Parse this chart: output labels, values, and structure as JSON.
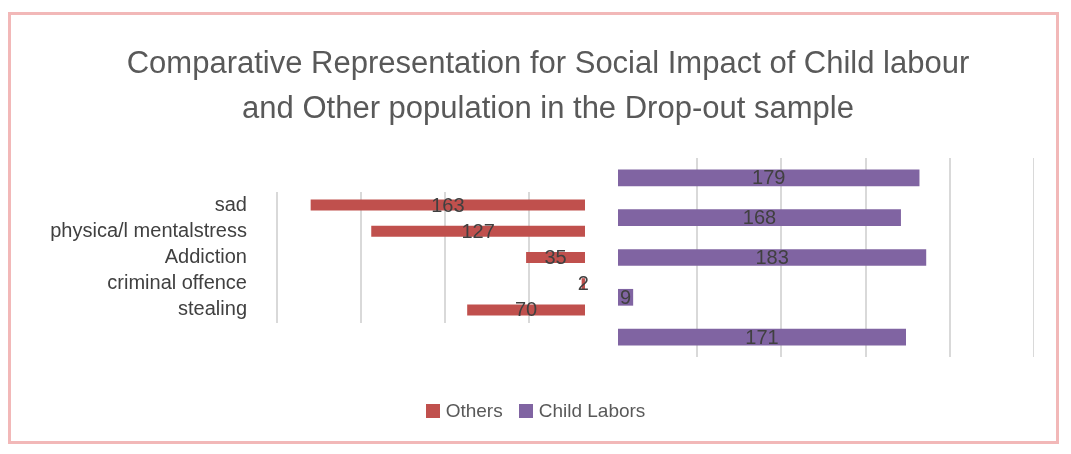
{
  "chart_data": [
    {
      "type": "bar",
      "orientation": "horizontal",
      "title": "Comparative Representation for Social Impact of Child labour and Other population in the Drop-out sample",
      "categories": [
        "sad",
        "physica/l mentalstress",
        "Addiction",
        "criminal offence",
        "stealing"
      ],
      "series": [
        {
          "name": "Others",
          "color": "#c0504d",
          "values": [
            163,
            127,
            35,
            2,
            70
          ]
        }
      ],
      "xlim": [
        183,
        0
      ],
      "xticks": [
        {
          "value": 33,
          "label": null
        },
        {
          "value": 83,
          "label": null
        },
        {
          "value": 133,
          "label": null
        },
        {
          "value": 183,
          "label": null
        }
      ],
      "grid": "x",
      "tick_labels": "y",
      "data_labels": true,
      "legend": "bottom"
    },
    {
      "type": "bar",
      "orientation": "horizontal",
      "categories": [
        null,
        null,
        null,
        null,
        null
      ],
      "series": [
        {
          "name": "Child Labors",
          "color": "#8064a2",
          "values": [
            179,
            168,
            183,
            9,
            171
          ]
        }
      ],
      "xlim": [
        0,
        247
      ],
      "xticks": [
        {
          "value": 47,
          "label": null
        },
        {
          "value": 97,
          "label": null
        },
        {
          "value": 147,
          "label": null
        },
        {
          "value": 197,
          "label": null
        },
        {
          "value": 247,
          "label": null
        }
      ],
      "grid": "x",
      "tick_labels": false,
      "data_labels": true,
      "legend": "bottom"
    }
  ]
}
